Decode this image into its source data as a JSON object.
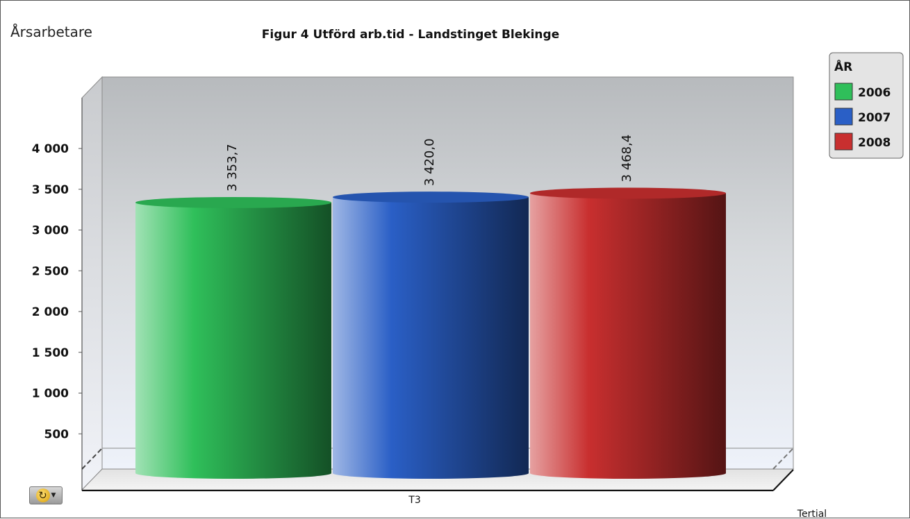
{
  "chart_data": {
    "type": "bar",
    "style": "3d-cylinder",
    "title": "Figur 4 Utförd arb.tid  - Landstinget Blekinge",
    "ylabel": "Årsarbetare",
    "xlabel": "Tertial",
    "categories": [
      "T3"
    ],
    "series": [
      {
        "name": "2006",
        "values": [
          3353.7
        ],
        "label": "3 353,7",
        "color": "#2fbf5a"
      },
      {
        "name": "2007",
        "values": [
          3420.0
        ],
        "label": "3 420,0",
        "color": "#2a5fc6"
      },
      {
        "name": "2008",
        "values": [
          3468.4
        ],
        "label": "3 468,4",
        "color": "#c82f2f"
      }
    ],
    "yticks": [
      {
        "value": 500,
        "label": "500"
      },
      {
        "value": 1000,
        "label": "1 000"
      },
      {
        "value": 1500,
        "label": "1 500"
      },
      {
        "value": 2000,
        "label": "2 000"
      },
      {
        "value": 2500,
        "label": "2 500"
      },
      {
        "value": 3000,
        "label": "3 000"
      },
      {
        "value": 3500,
        "label": "3 500"
      },
      {
        "value": 4000,
        "label": "4 000"
      }
    ],
    "ylim": [
      0,
      4800
    ],
    "legend": {
      "title": "ÅR",
      "position": "top-right"
    },
    "grid": false
  },
  "controls": {
    "refresh_icon": "refresh-icon"
  }
}
